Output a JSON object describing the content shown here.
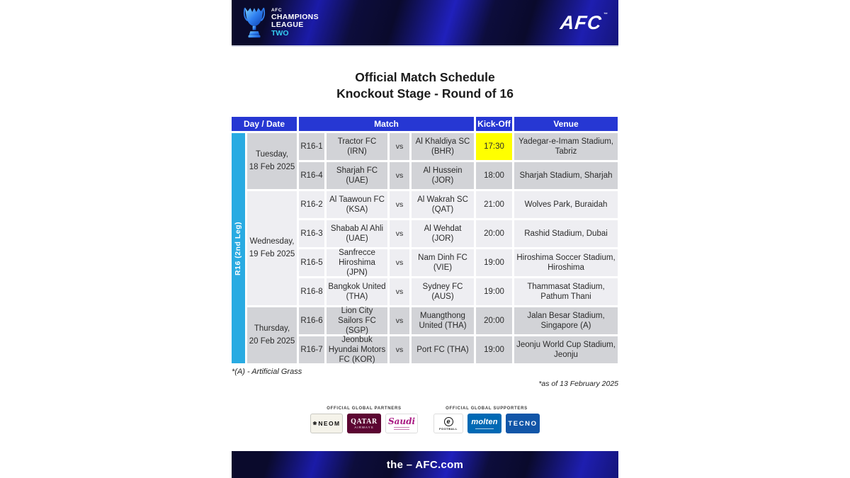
{
  "banner": {
    "logo": {
      "afc": "AFC",
      "champions": "CHAMPIONS",
      "league": "LEAGUE",
      "two": "TWO"
    },
    "afc_wordmark": "AFC",
    "afc_tm": "™"
  },
  "title": {
    "line1": "Official Match Schedule",
    "line2": "Knockout Stage - Round of 16"
  },
  "table": {
    "headers": {
      "day_date": "Day / Date",
      "match": "Match",
      "kick_off": "Kick-Off",
      "venue": "Venue"
    },
    "leg_label": "R16 (2nd Leg)",
    "vs_label": "vs",
    "day_groups": [
      {
        "day": "Tuesday,",
        "date": "18 Feb 2025",
        "matches": [
          {
            "num": "R16-1",
            "home": "Tractor FC (IRN)",
            "away": "Al Khaldiya SC (BHR)",
            "kick_off": "17:30",
            "venue": "Yadegar-e-Imam Stadium, Tabriz",
            "highlight": true
          },
          {
            "num": "R16-4",
            "home": "Sharjah FC (UAE)",
            "away": "Al Hussein (JOR)",
            "kick_off": "18:00",
            "venue": "Sharjah Stadium, Sharjah",
            "highlight": false
          }
        ]
      },
      {
        "day": "Wednesday,",
        "date": "19 Feb 2025",
        "matches": [
          {
            "num": "R16-2",
            "home": "Al Taawoun FC (KSA)",
            "away": "Al Wakrah SC (QAT)",
            "kick_off": "21:00",
            "venue": "Wolves Park, Buraidah",
            "highlight": false
          },
          {
            "num": "R16-3",
            "home": "Shabab Al Ahli (UAE)",
            "away": "Al Wehdat (JOR)",
            "kick_off": "20:00",
            "venue": "Rashid Stadium, Dubai",
            "highlight": false
          },
          {
            "num": "R16-5",
            "home": "Sanfrecce Hiroshima (JPN)",
            "away": "Nam Dinh FC (VIE)",
            "kick_off": "19:00",
            "venue": "Hiroshima Soccer Stadium, Hiroshima",
            "highlight": false
          },
          {
            "num": "R16-8",
            "home": "Bangkok United (THA)",
            "away": "Sydney FC (AUS)",
            "kick_off": "19:00",
            "venue": "Thammasat Stadium, Pathum Thani",
            "highlight": false
          }
        ]
      },
      {
        "day": "Thursday,",
        "date": "20 Feb 2025",
        "matches": [
          {
            "num": "R16-6",
            "home": "Lion City Sailors FC (SGP)",
            "away": "Muangthong United (THA)",
            "kick_off": "20:00",
            "venue": "Jalan Besar Stadium, Singapore (A)",
            "highlight": false
          },
          {
            "num": "R16-7",
            "home": "Jeonbuk Hyundai Motors FC (KOR)",
            "away": "Port FC (THA)",
            "kick_off": "19:00",
            "venue": "Jeonju World Cup Stadium, Jeonju",
            "highlight": false
          }
        ]
      }
    ]
  },
  "notes": {
    "artificial_grass": "*(A) - Artificial Grass",
    "as_of": "*as of 13 February 2025"
  },
  "sponsors": {
    "partners_label": "OFFICIAL GLOBAL PARTNERS",
    "supporters_label": "OFFICIAL GLOBAL SUPPORTERS",
    "neom": "NEOM",
    "neom_flower": "❀",
    "qatar_line1": "QATAR",
    "qatar_line2": "AIRWAYS",
    "saudi": "Saudi",
    "efootball_mark": "e",
    "efootball_text": "FOOTBALL",
    "molten": "molten",
    "tecno": "TECNO"
  },
  "footer": {
    "url": "the – AFC.com"
  },
  "colors": {
    "header_blue": "#2637d3",
    "leg_cyan": "#29abe2",
    "highlight_yellow": "#ffff00",
    "group_shade_dark": "#d2d3d7",
    "group_shade_light": "#eeeef2",
    "qatar_maroon": "#5c0632",
    "molten_blue": "#0069b4",
    "tecno_blue": "#1256a8",
    "saudi_purple": "#a91a83",
    "two_cyan": "#35cdf2"
  }
}
